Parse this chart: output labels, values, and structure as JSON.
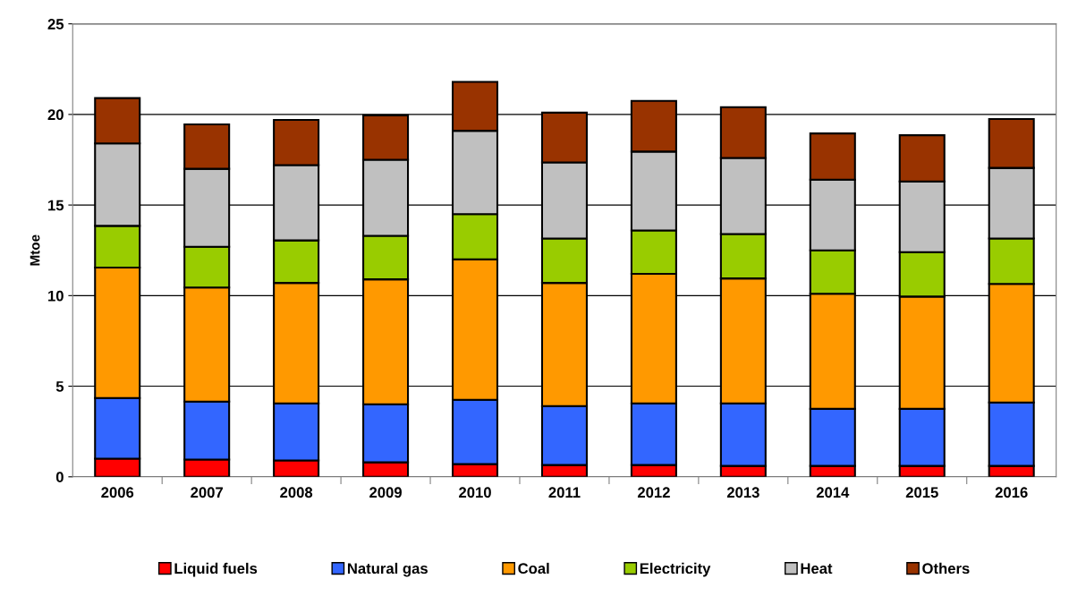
{
  "chart_data": {
    "type": "bar",
    "stacked": true,
    "ylabel": "Mtoe",
    "categories": [
      "2006",
      "2007",
      "2008",
      "2009",
      "2010",
      "2011",
      "2012",
      "2013",
      "2014",
      "2015",
      "2016"
    ],
    "series": [
      {
        "name": "Liquid fuels",
        "color": "#ff0000",
        "values": [
          1.0,
          0.95,
          0.9,
          0.8,
          0.7,
          0.65,
          0.65,
          0.6,
          0.6,
          0.6,
          0.6
        ]
      },
      {
        "name": "Natural gas",
        "color": "#3366ff",
        "values": [
          3.35,
          3.2,
          3.15,
          3.2,
          3.55,
          3.25,
          3.4,
          3.45,
          3.15,
          3.15,
          3.5
        ]
      },
      {
        "name": "Coal",
        "color": "#ff9900",
        "values": [
          7.2,
          6.3,
          6.65,
          6.9,
          7.75,
          6.8,
          7.15,
          6.9,
          6.35,
          6.2,
          6.55
        ]
      },
      {
        "name": "Electricity",
        "color": "#99cc00",
        "values": [
          2.3,
          2.25,
          2.35,
          2.4,
          2.5,
          2.45,
          2.4,
          2.45,
          2.4,
          2.45,
          2.5
        ]
      },
      {
        "name": "Heat",
        "color": "#c0c0c0",
        "values": [
          4.55,
          4.3,
          4.15,
          4.2,
          4.6,
          4.2,
          4.35,
          4.2,
          3.9,
          3.9,
          3.9
        ]
      },
      {
        "name": "Others",
        "color": "#993300",
        "values": [
          2.5,
          2.45,
          2.5,
          2.45,
          2.7,
          2.75,
          2.8,
          2.8,
          2.55,
          2.55,
          2.7
        ]
      }
    ],
    "ylim": [
      0,
      25
    ],
    "yticks": [
      0,
      5,
      10,
      15,
      20,
      25
    ],
    "grid": "y",
    "legend": "bottom"
  }
}
